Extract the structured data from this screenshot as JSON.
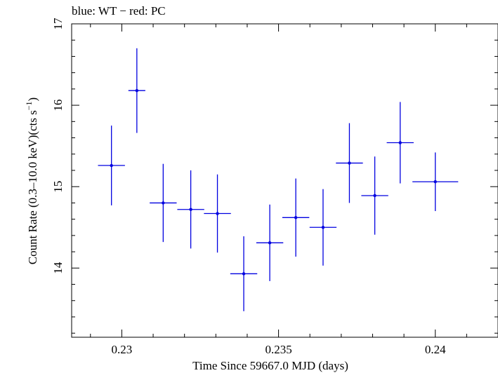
{
  "chart_data": {
    "type": "scatter",
    "title": "blue: WT − red: PC",
    "xlabel": "Time Since 59667.0 MJD (days)",
    "ylabel": "Count Rate (0.3–10.0 keV)(cts s",
    "ylabel_sup": "−1",
    "ylabel_tail": ")",
    "xlim": [
      0.2284,
      0.242
    ],
    "ylim": [
      13.15,
      17.0
    ],
    "xticks": [
      0.23,
      0.235,
      0.24
    ],
    "xtick_labels": [
      "0.23",
      "0.235",
      "0.24"
    ],
    "yticks": [
      14,
      15,
      16,
      17
    ],
    "ytick_labels": [
      "14",
      "15",
      "16",
      "17"
    ],
    "grid": false,
    "series": [
      {
        "color": "#0000e0",
        "points": [
          {
            "x": 0.22967,
            "y": 15.26,
            "xerr": 0.00043,
            "yerr": 0.49
          },
          {
            "x": 0.23048,
            "y": 16.18,
            "xerr": 0.00027,
            "yerr": 0.52
          },
          {
            "x": 0.23132,
            "y": 14.8,
            "xerr": 0.00043,
            "yerr": 0.48
          },
          {
            "x": 0.2322,
            "y": 14.72,
            "xerr": 0.00043,
            "yerr": 0.48
          },
          {
            "x": 0.23305,
            "y": 14.67,
            "xerr": 0.00043,
            "yerr": 0.48
          },
          {
            "x": 0.23389,
            "y": 13.93,
            "xerr": 0.00043,
            "yerr": 0.46
          },
          {
            "x": 0.23472,
            "y": 14.31,
            "xerr": 0.00043,
            "yerr": 0.47
          },
          {
            "x": 0.23555,
            "y": 14.62,
            "xerr": 0.00043,
            "yerr": 0.48
          },
          {
            "x": 0.23642,
            "y": 14.5,
            "xerr": 0.00043,
            "yerr": 0.47
          },
          {
            "x": 0.23726,
            "y": 15.29,
            "xerr": 0.00043,
            "yerr": 0.49
          },
          {
            "x": 0.23807,
            "y": 14.89,
            "xerr": 0.00043,
            "yerr": 0.48
          },
          {
            "x": 0.23888,
            "y": 15.54,
            "xerr": 0.00043,
            "yerr": 0.5
          },
          {
            "x": 0.24,
            "y": 15.06,
            "xerr": 0.00073,
            "yerr": 0.36
          }
        ]
      }
    ]
  }
}
